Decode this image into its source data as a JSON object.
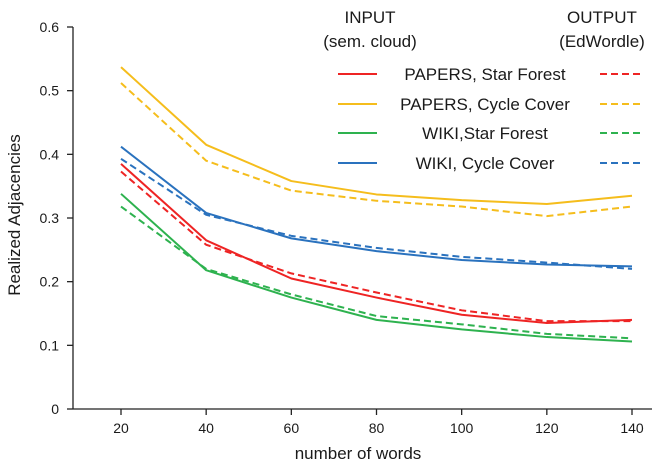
{
  "chart_data": {
    "type": "line",
    "title": "",
    "xlabel": "number of words",
    "ylabel": "Realized Adjacencies",
    "x": [
      20,
      40,
      60,
      80,
      100,
      120,
      140
    ],
    "xlim": [
      20,
      140
    ],
    "ylim": [
      0,
      0.6
    ],
    "xticks": [
      "20",
      "40",
      "60",
      "80",
      "100",
      "120",
      "140"
    ],
    "yticks": [
      "0",
      "0.1",
      "0.2",
      "0.3",
      "0.4",
      "0.5",
      "0.6"
    ],
    "grid": false,
    "legend_position": "top-right",
    "legend_headers": {
      "input_line1": "INPUT",
      "input_line2": "(sem. cloud)",
      "output_line1": "OUTPUT",
      "output_line2": "(EdWordle)"
    },
    "series": [
      {
        "name": "PAPERS, Star Forest",
        "color": "#ee2424",
        "variant": "input",
        "values": [
          0.385,
          0.265,
          0.205,
          0.175,
          0.148,
          0.135,
          0.14
        ]
      },
      {
        "name": "PAPERS, Star Forest",
        "color": "#ee2424",
        "variant": "output",
        "values": [
          0.373,
          0.258,
          0.213,
          0.183,
          0.155,
          0.138,
          0.138
        ]
      },
      {
        "name": "PAPERS, Cycle Cover",
        "color": "#f5bd1c",
        "variant": "input",
        "values": [
          0.537,
          0.415,
          0.358,
          0.337,
          0.328,
          0.322,
          0.335
        ]
      },
      {
        "name": "PAPERS, Cycle Cover",
        "color": "#f5bd1c",
        "variant": "output",
        "values": [
          0.512,
          0.39,
          0.343,
          0.327,
          0.318,
          0.303,
          0.318
        ]
      },
      {
        "name": "WIKI,Star Forest",
        "color": "#2eb24f",
        "variant": "input",
        "values": [
          0.338,
          0.218,
          0.175,
          0.14,
          0.125,
          0.113,
          0.106
        ]
      },
      {
        "name": "WIKI,Star Forest",
        "color": "#2eb24f",
        "variant": "output",
        "values": [
          0.318,
          0.22,
          0.18,
          0.146,
          0.133,
          0.118,
          0.111
        ]
      },
      {
        "name": "WIKI, Cycle Cover",
        "color": "#2a72be",
        "variant": "input",
        "values": [
          0.412,
          0.308,
          0.268,
          0.248,
          0.234,
          0.227,
          0.224
        ]
      },
      {
        "name": "WIKI, Cycle Cover",
        "color": "#2a72be",
        "variant": "output",
        "values": [
          0.393,
          0.305,
          0.272,
          0.253,
          0.239,
          0.23,
          0.22
        ]
      }
    ],
    "legend": [
      {
        "label": "PAPERS, Star Forest",
        "color": "#ee2424"
      },
      {
        "label": "PAPERS, Cycle Cover",
        "color": "#f5bd1c"
      },
      {
        "label": "WIKI,Star Forest",
        "color": "#2eb24f"
      },
      {
        "label": "WIKI, Cycle Cover",
        "color": "#2a72be"
      }
    ]
  }
}
